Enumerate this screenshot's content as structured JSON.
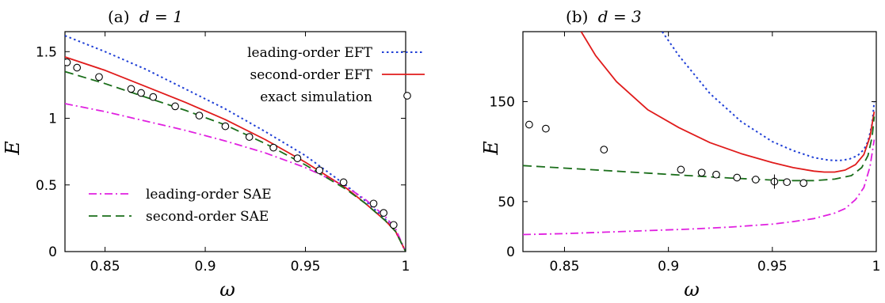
{
  "chart_data": [
    {
      "type": "line",
      "title_prefix": "(a)",
      "title_math": "d = 1",
      "xlabel": "ω",
      "ylabel": "E",
      "xlim": [
        0.83,
        1.0
      ],
      "ylim": [
        0,
        1.65
      ],
      "xticks": [
        0.85,
        0.9,
        0.95,
        1
      ],
      "xtick_labels": [
        "0.85",
        "0.9",
        "0.95",
        "1"
      ],
      "yticks": [
        0,
        0.5,
        1,
        1.5
      ],
      "ytick_labels": [
        "0",
        "0.5",
        "1",
        "1.5"
      ],
      "legend_top": [
        "leading-order EFT",
        "second-order EFT",
        "exact simulation"
      ],
      "legend_bottom": [
        "leading-order SAE",
        "second-order SAE"
      ],
      "series": [
        {
          "name": "leading-order EFT",
          "style": "dotted",
          "color": "#1f3fd6",
          "x": [
            0.83,
            0.85,
            0.87,
            0.89,
            0.91,
            0.93,
            0.95,
            0.97,
            0.98,
            0.99,
            0.995,
            1.0
          ],
          "y": [
            1.62,
            1.5,
            1.37,
            1.22,
            1.07,
            0.9,
            0.72,
            0.5,
            0.38,
            0.24,
            0.15,
            0.0
          ]
        },
        {
          "name": "second-order EFT",
          "style": "solid",
          "color": "#e01b1b",
          "x": [
            0.83,
            0.85,
            0.87,
            0.89,
            0.91,
            0.93,
            0.95,
            0.97,
            0.98,
            0.99,
            0.995,
            1.0
          ],
          "y": [
            1.46,
            1.36,
            1.24,
            1.12,
            0.99,
            0.84,
            0.67,
            0.48,
            0.36,
            0.23,
            0.15,
            0.0
          ]
        },
        {
          "name": "leading-order SAE",
          "style": "dashdot",
          "color": "#e020e0",
          "x": [
            0.83,
            0.85,
            0.87,
            0.89,
            0.91,
            0.93,
            0.95,
            0.97,
            0.98,
            0.99,
            0.995,
            1.0
          ],
          "y": [
            1.11,
            1.05,
            0.98,
            0.91,
            0.83,
            0.74,
            0.63,
            0.49,
            0.39,
            0.26,
            0.17,
            0.0
          ]
        },
        {
          "name": "second-order SAE",
          "style": "dashed",
          "color": "#1a6e1a",
          "x": [
            0.83,
            0.85,
            0.87,
            0.89,
            0.91,
            0.93,
            0.95,
            0.97,
            0.98,
            0.99,
            0.995,
            1.0
          ],
          "y": [
            1.35,
            1.26,
            1.16,
            1.06,
            0.95,
            0.81,
            0.65,
            0.47,
            0.36,
            0.23,
            0.15,
            0.0
          ]
        },
        {
          "name": "exact simulation",
          "style": "markers",
          "x": [
            0.831,
            0.836,
            0.847,
            0.863,
            0.868,
            0.874,
            0.885,
            0.897,
            0.91,
            0.922,
            0.934,
            0.946,
            0.957,
            0.969,
            0.984,
            0.989,
            0.994
          ],
          "y": [
            1.42,
            1.38,
            1.31,
            1.22,
            1.19,
            1.16,
            1.09,
            1.02,
            0.94,
            0.86,
            0.78,
            0.7,
            0.61,
            0.52,
            0.36,
            0.29,
            0.2
          ]
        }
      ]
    },
    {
      "type": "line",
      "title_prefix": "(b)",
      "title_math": "d = 3",
      "xlabel": "ω",
      "ylabel": "E",
      "xlim": [
        0.83,
        1.0
      ],
      "ylim": [
        0,
        220
      ],
      "xticks": [
        0.85,
        0.9,
        0.95,
        1
      ],
      "xtick_labels": [
        "0.85",
        "0.9",
        "0.95",
        "1"
      ],
      "yticks": [
        0,
        50,
        150
      ],
      "ytick_labels": [
        "0",
        "50",
        "150"
      ],
      "series": [
        {
          "name": "leading-order EFT",
          "style": "dotted",
          "color": "#1f3fd6",
          "x": [
            0.897,
            0.905,
            0.92,
            0.935,
            0.95,
            0.96,
            0.97,
            0.977,
            0.982,
            0.987,
            0.991,
            0.994,
            0.996,
            0.998,
            0.999
          ],
          "y": [
            220,
            196,
            158,
            130,
            110,
            101,
            94,
            91.5,
            91,
            92.5,
            96,
            102,
            110,
            128,
            150
          ]
        },
        {
          "name": "second-order EFT",
          "style": "solid",
          "color": "#e01b1b",
          "x": [
            0.858,
            0.865,
            0.875,
            0.89,
            0.905,
            0.92,
            0.935,
            0.95,
            0.96,
            0.97,
            0.975,
            0.98,
            0.985,
            0.99,
            0.994,
            0.997,
            0.999
          ],
          "y": [
            220,
            196,
            170,
            142,
            124,
            109,
            98,
            89,
            84,
            80.5,
            79.5,
            79.5,
            81.5,
            87,
            97,
            115,
            140
          ]
        },
        {
          "name": "second-order SAE",
          "style": "dashed",
          "color": "#1a6e1a",
          "x": [
            0.83,
            0.85,
            0.87,
            0.89,
            0.91,
            0.93,
            0.95,
            0.96,
            0.97,
            0.98,
            0.988,
            0.993,
            0.996,
            0.998,
            0.999
          ],
          "y": [
            86,
            83.5,
            81,
            78.5,
            76,
            73.5,
            71.5,
            71,
            71,
            72.5,
            76,
            84,
            96,
            115,
            135
          ]
        },
        {
          "name": "leading-order SAE",
          "style": "dashdot",
          "color": "#e020e0",
          "x": [
            0.83,
            0.85,
            0.87,
            0.89,
            0.91,
            0.93,
            0.95,
            0.96,
            0.97,
            0.98,
            0.985,
            0.99,
            0.994,
            0.997,
            0.999
          ],
          "y": [
            17,
            18,
            19.5,
            21,
            22.5,
            24.5,
            27.5,
            30,
            33,
            38.5,
            43,
            52,
            64,
            85,
            112
          ]
        },
        {
          "name": "exact simulation",
          "style": "markers",
          "x": [
            0.833,
            0.841,
            0.869,
            0.906,
            0.916,
            0.923,
            0.933,
            0.942,
            0.951,
            0.957,
            0.965
          ],
          "y": [
            127,
            123,
            102,
            82,
            79,
            77,
            74,
            72,
            70,
            69.5,
            68.5
          ]
        }
      ]
    }
  ]
}
